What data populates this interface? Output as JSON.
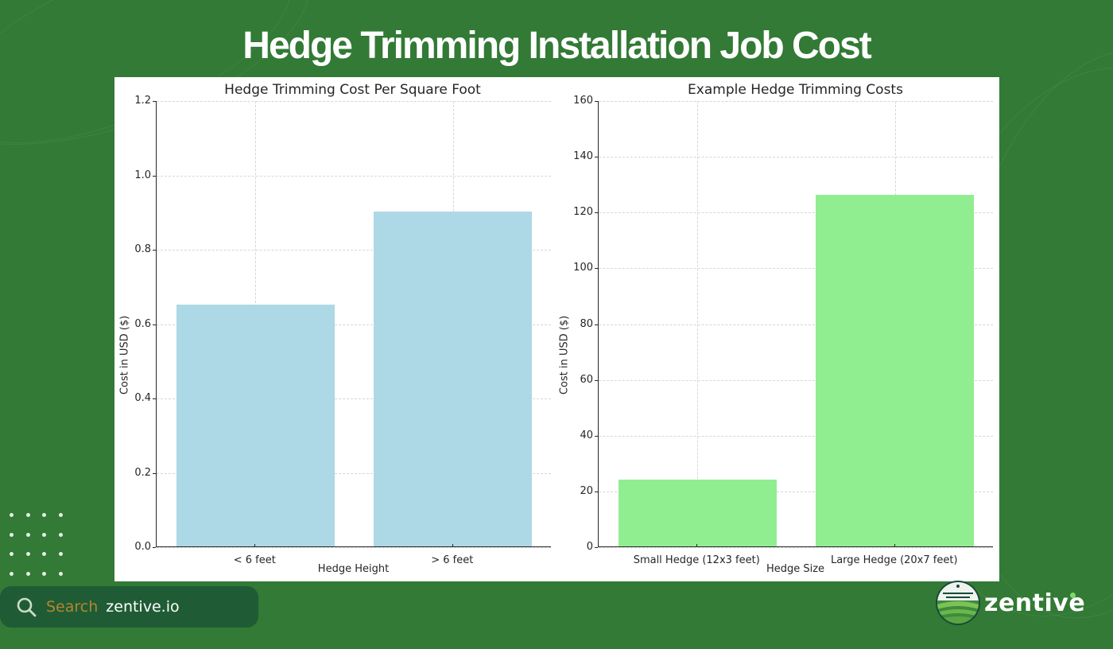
{
  "page": {
    "title": "Hedge Trimming Installation Job Cost",
    "background_color": "#327a35"
  },
  "footer": {
    "search_icon": "search-icon",
    "search_word": "Search",
    "search_site": "zentive.io",
    "logo_text": "zentive"
  },
  "charts": {
    "left": {
      "title": "Hedge Trimming Cost Per Square Foot",
      "xlabel": "Hedge Height",
      "ylabel": "Cost in USD ($)",
      "yticks": [
        "0.0",
        "0.2",
        "0.4",
        "0.6",
        "0.8",
        "1.0",
        "1.2"
      ],
      "categories": [
        "< 6 feet",
        "> 6 feet"
      ],
      "bar_color": "#add8e6"
    },
    "right": {
      "title": "Example Hedge Trimming Costs",
      "xlabel": "Hedge Size",
      "ylabel": "Cost in USD ($)",
      "yticks": [
        "0",
        "20",
        "40",
        "60",
        "80",
        "100",
        "120",
        "140",
        "160"
      ],
      "categories": [
        "Small Hedge (12x3 feet)",
        "Large Hedge (20x7 feet)"
      ],
      "bar_color": "#90ee90"
    }
  },
  "chart_data": [
    {
      "type": "bar",
      "title": "Hedge Trimming Cost Per Square Foot",
      "categories": [
        "< 6 feet",
        "> 6 feet"
      ],
      "values": [
        0.65,
        0.9
      ],
      "xlabel": "Hedge Height",
      "ylabel": "Cost in USD ($)",
      "ylim": [
        0,
        1.2
      ],
      "yticks": [
        0.0,
        0.2,
        0.4,
        0.6,
        0.8,
        1.0,
        1.2
      ],
      "grid": true,
      "legend": null,
      "color": "#add8e6"
    },
    {
      "type": "bar",
      "title": "Example Hedge Trimming Costs",
      "categories": [
        "Small Hedge (12x3 feet)",
        "Large Hedge (20x7 feet)"
      ],
      "values": [
        24,
        126
      ],
      "xlabel": "Hedge Size",
      "ylabel": "Cost in USD ($)",
      "ylim": [
        0,
        160
      ],
      "yticks": [
        0,
        20,
        40,
        60,
        80,
        100,
        120,
        140,
        160
      ],
      "grid": true,
      "legend": null,
      "color": "#90ee90"
    }
  ]
}
